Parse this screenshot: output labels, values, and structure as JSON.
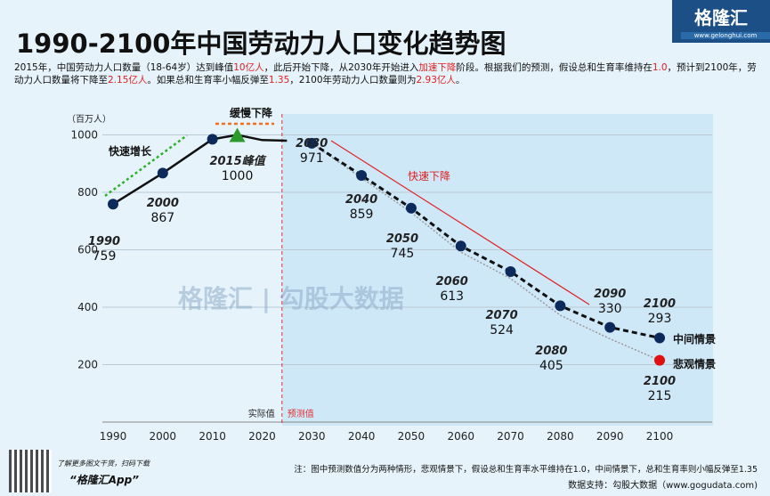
{
  "header": {
    "title": "1990-2100年中国劳动力人口变化趋势图",
    "logo": "格隆汇",
    "logo_url": "www.gelonghui.com",
    "desc_parts": [
      "2015年，中国劳动力人口数量（18-64岁）达到峰值",
      "10亿人",
      "，此后开始下降，从2030年开始进入",
      "加速下降",
      "阶段。根据我们的预测，假设总和生育率维持在",
      "1.0",
      "，预计到2100年，劳动力人口数量将下降至",
      "2.15亿人",
      "。如果总和生育率小幅反弹至",
      "1.35",
      "，2100年劳动力人口数量则为",
      "2.93亿人",
      "。"
    ]
  },
  "chart_data": {
    "type": "line",
    "ylabel": "（百万人）",
    "xlim": [
      1990,
      2100
    ],
    "ylim": [
      0,
      1000
    ],
    "x_ticks": [
      1990,
      2000,
      2010,
      2020,
      2030,
      2040,
      2050,
      2060,
      2070,
      2080,
      2090,
      2100
    ],
    "y_ticks": [
      200,
      400,
      600,
      800,
      1000
    ],
    "historical": {
      "x": [
        1990,
        2000,
        2010,
        2015,
        2020,
        2025
      ],
      "y": [
        759,
        867,
        985,
        1000,
        982,
        980
      ]
    },
    "series": [
      {
        "name": "中间情景",
        "x": [
          2030,
          2040,
          2050,
          2060,
          2070,
          2080,
          2090,
          2100
        ],
        "values": [
          971,
          859,
          745,
          613,
          524,
          405,
          330,
          293
        ],
        "color": "#111111"
      },
      {
        "name": "悲观情景",
        "x": [
          2030,
          2040,
          2050,
          2060,
          2070,
          2080,
          2090,
          2100
        ],
        "values": [
          971,
          850,
          730,
          592,
          500,
          372,
          290,
          215
        ],
        "color": "#999999"
      }
    ],
    "point_labels": [
      {
        "year": "1990",
        "value": "759"
      },
      {
        "year": "2000",
        "value": "867"
      },
      {
        "year": "2015峰值",
        "value": "1000"
      },
      {
        "year": "2030",
        "value": "971"
      },
      {
        "year": "2040",
        "value": "859"
      },
      {
        "year": "2050",
        "value": "745"
      },
      {
        "year": "2060",
        "value": "613"
      },
      {
        "year": "2070",
        "value": "524"
      },
      {
        "year": "2080",
        "value": "405"
      },
      {
        "year": "2090",
        "value": "330"
      },
      {
        "year": "2100",
        "value": "293"
      },
      {
        "year": "2100",
        "value": "215"
      }
    ],
    "annotations": {
      "fast_growth": "快速增长",
      "slow_decline": "缓慢下降",
      "fast_decline": "快速下降",
      "actual": "实际值",
      "forecast": "预测值"
    },
    "watermark": "格隆汇 | 勾股大数据"
  },
  "footer": {
    "app_line1": "了解更多图文干货，扫码下载",
    "app_line2": "“格隆汇App”",
    "note": "注：图中预测数值分为两种情形，悲观情景下，假设总和生育率水平维持在1.0，中间情景下，总和生育率则小幅反弹至1.35",
    "source": "数据支持：勾股大数据（www.gogudata.com)"
  }
}
